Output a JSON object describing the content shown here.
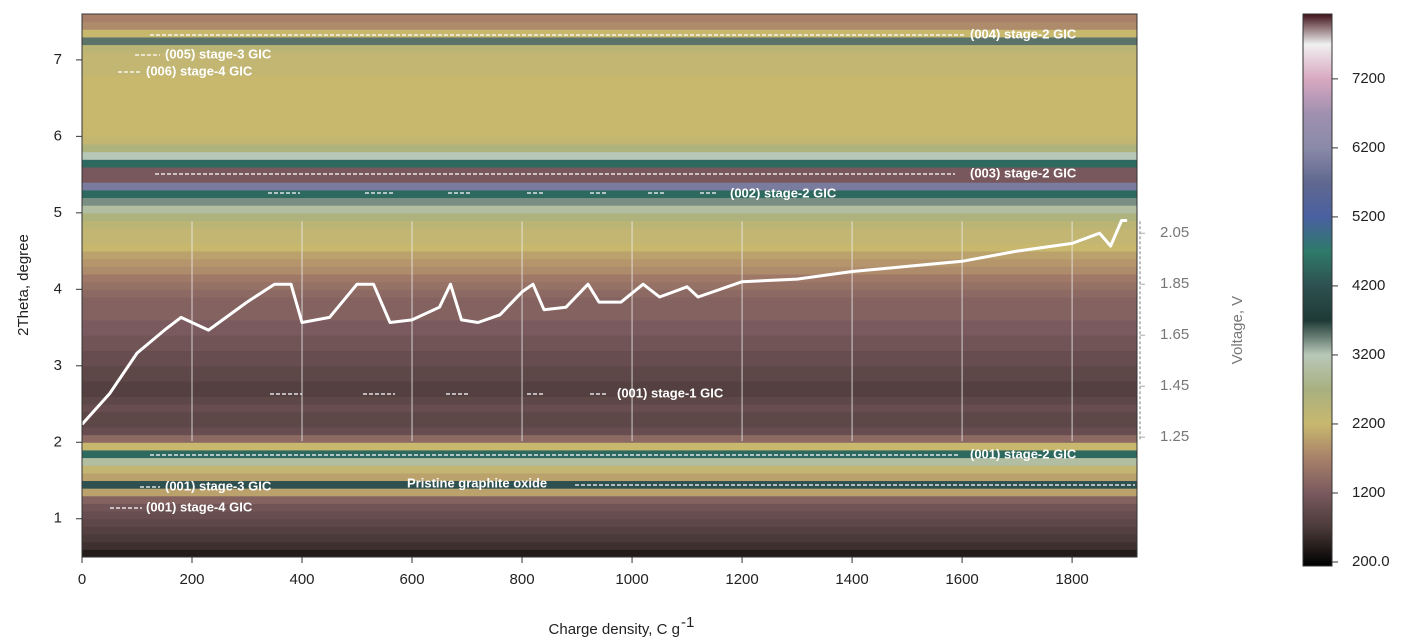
{
  "chart_data": {
    "type": "heatmap",
    "xlabel": "Charge density, C g",
    "xlabel_superscript": "-1",
    "ylabel": "2Theta, degree",
    "y2label": "Voltage, V",
    "xlim": [
      0,
      1918
    ],
    "xticks": [
      0,
      200,
      400,
      600,
      800,
      1000,
      1200,
      1400,
      1600,
      1800
    ],
    "ylim": [
      0.5,
      7.6
    ],
    "yticks": [
      1,
      2,
      3,
      4,
      5,
      6,
      7
    ],
    "y2lim": [
      0.78,
      2.91
    ],
    "y2ticks": [
      1.25,
      1.45,
      1.65,
      1.85,
      2.05
    ],
    "y_edges": [
      0.5,
      0.6,
      0.7,
      0.8,
      0.9,
      1.0,
      1.1,
      1.2,
      1.3,
      1.4,
      1.5,
      1.6,
      1.7,
      1.8,
      1.9,
      2.0,
      2.1,
      2.2,
      2.3,
      2.4,
      2.5,
      2.6,
      2.7,
      2.8,
      2.9,
      3.0,
      3.1,
      3.2,
      3.3,
      3.4,
      3.5,
      3.6,
      3.7,
      3.8,
      3.9,
      4.0,
      4.1,
      4.2,
      4.3,
      4.4,
      4.5,
      4.6,
      4.7,
      4.8,
      4.9,
      5.0,
      5.1,
      5.2,
      5.3,
      5.4,
      5.5,
      5.6,
      5.7,
      5.8,
      5.9,
      6.0,
      6.1,
      6.2,
      6.3,
      6.4,
      6.5,
      6.6,
      6.7,
      6.8,
      6.9,
      7.0,
      7.1,
      7.2,
      7.3,
      7.4,
      7.5,
      7.6
    ],
    "values": [
      400,
      600,
      700,
      800,
      900,
      1000,
      1100,
      1300,
      2000,
      4200,
      2000,
      2300,
      3000,
      4500,
      2200,
      1400,
      1000,
      900,
      900,
      1000,
      900,
      800,
      800,
      900,
      900,
      1000,
      1000,
      1100,
      1100,
      1200,
      1200,
      1300,
      1300,
      1300,
      1400,
      1500,
      1600,
      1800,
      1900,
      2000,
      2200,
      2300,
      2300,
      2400,
      2600,
      3000,
      3400,
      4500,
      6000,
      8000,
      8000,
      4500,
      3200,
      2600,
      2300,
      2200,
      2200,
      2200,
      2200,
      2200,
      2200,
      2200,
      2200,
      2300,
      2300,
      2300,
      2400,
      3500,
      2200,
      1800,
      1700
    ],
    "series": [
      {
        "type": "line",
        "axis": "y2",
        "color": "#ffffff",
        "x": [
          0,
          50,
          100,
          150,
          180,
          200,
          230,
          300,
          350,
          380,
          400,
          450,
          500,
          530,
          560,
          600,
          650,
          670,
          690,
          720,
          760,
          800,
          820,
          840,
          880,
          920,
          940,
          980,
          1020,
          1050,
          1100,
          1120,
          1200,
          1300,
          1400,
          1500,
          1600,
          1700,
          1800,
          1850,
          1870,
          1890,
          1900
        ],
        "values": [
          1.3,
          1.42,
          1.58,
          1.67,
          1.72,
          1.7,
          1.67,
          1.78,
          1.85,
          1.85,
          1.7,
          1.72,
          1.85,
          1.85,
          1.7,
          1.71,
          1.76,
          1.85,
          1.71,
          1.7,
          1.73,
          1.82,
          1.85,
          1.75,
          1.76,
          1.85,
          1.78,
          1.78,
          1.85,
          1.8,
          1.84,
          1.8,
          1.86,
          1.87,
          1.9,
          1.92,
          1.94,
          1.98,
          2.01,
          2.05,
          2.0,
          2.1,
          2.1
        ]
      }
    ],
    "colorbar": {
      "lim": [
        142,
        8140
      ],
      "ticks": [
        {
          "value": 200,
          "label": "200.0"
        },
        1200,
        2200,
        3200,
        4200,
        5200,
        6200,
        7200
      ],
      "colorscale": [
        [
          142,
          "#000000"
        ],
        [
          700,
          "#4a3a38"
        ],
        [
          1200,
          "#7a5a5e"
        ],
        [
          1700,
          "#a8806a"
        ],
        [
          2200,
          "#c8b86e"
        ],
        [
          2700,
          "#a8b080"
        ],
        [
          3200,
          "#b8c8b8"
        ],
        [
          3700,
          "#1e3a36"
        ],
        [
          4200,
          "#2e5050"
        ],
        [
          4700,
          "#2e7a6a"
        ],
        [
          5200,
          "#4a60a0"
        ],
        [
          5700,
          "#606890"
        ],
        [
          6200,
          "#8a8aa8"
        ],
        [
          6700,
          "#a090b0"
        ],
        [
          7200,
          "#d8a8c0"
        ],
        [
          7700,
          "#f0f0f0"
        ],
        [
          8140,
          "#401018"
        ]
      ]
    },
    "annotations": [
      "(004) stage-2 GIC",
      "(005) stage-3 GIC",
      "(006) stage-4 GIC",
      "(003) stage-2 GIC",
      "(002) stage-2 GIC",
      "(001) stage-1 GIC",
      "(001) stage-2 GIC",
      "Pristine graphite oxide",
      "(001) stage-3 GIC",
      "(001) stage-4 GIC"
    ]
  }
}
